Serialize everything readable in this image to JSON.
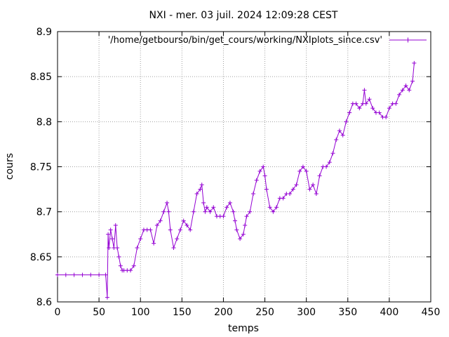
{
  "chart_data": {
    "type": "line",
    "title": "NXI - mer. 03 juil. 2024 12:09:28 CEST",
    "xlabel": "temps",
    "ylabel": "cours",
    "xlim": [
      0,
      450
    ],
    "ylim": [
      8.6,
      8.9
    ],
    "xticks": [
      "0",
      "50",
      "100",
      "150",
      "200",
      "250",
      "300",
      "350",
      "400",
      "450"
    ],
    "yticks": [
      "8.6",
      "8.65",
      "8.7",
      "8.75",
      "8.8",
      "8.85",
      "8.9"
    ],
    "grid": true,
    "legend_position": "top-right",
    "line_color": "#9400d3",
    "series": [
      {
        "name": "'/home/getbourso/bin/get_cours/working/NXIplots_since.csv'",
        "x": [
          0,
          10,
          20,
          30,
          40,
          50,
          58,
          60,
          61,
          62,
          64,
          66,
          68,
          70,
          72,
          74,
          76,
          78,
          80,
          84,
          88,
          92,
          96,
          100,
          104,
          108,
          112,
          116,
          120,
          124,
          128,
          132,
          134,
          136,
          140,
          144,
          148,
          152,
          156,
          160,
          164,
          168,
          172,
          174,
          176,
          178,
          180,
          184,
          188,
          192,
          196,
          200,
          204,
          208,
          212,
          214,
          216,
          220,
          224,
          226,
          228,
          232,
          236,
          240,
          244,
          248,
          250,
          252,
          256,
          260,
          264,
          268,
          272,
          276,
          280,
          284,
          288,
          292,
          296,
          300,
          304,
          308,
          312,
          316,
          320,
          324,
          328,
          332,
          336,
          340,
          344,
          348,
          352,
          356,
          360,
          364,
          368,
          370,
          372,
          376,
          380,
          384,
          388,
          392,
          396,
          400,
          404,
          408,
          412,
          416,
          420,
          424,
          428,
          430
        ],
        "y": [
          8.63,
          8.63,
          8.63,
          8.63,
          8.63,
          8.63,
          8.63,
          8.605,
          8.675,
          8.66,
          8.68,
          8.67,
          8.66,
          8.685,
          8.66,
          8.65,
          8.64,
          8.635,
          8.635,
          8.635,
          8.635,
          8.64,
          8.66,
          8.67,
          8.68,
          8.68,
          8.68,
          8.665,
          8.685,
          8.69,
          8.7,
          8.71,
          8.7,
          8.68,
          8.66,
          8.67,
          8.68,
          8.69,
          8.685,
          8.68,
          8.7,
          8.72,
          8.725,
          8.73,
          8.71,
          8.7,
          8.705,
          8.7,
          8.705,
          8.695,
          8.695,
          8.695,
          8.705,
          8.71,
          8.7,
          8.69,
          8.68,
          8.67,
          8.675,
          8.685,
          8.695,
          8.7,
          8.72,
          8.735,
          8.745,
          8.75,
          8.74,
          8.725,
          8.705,
          8.7,
          8.705,
          8.715,
          8.715,
          8.72,
          8.72,
          8.725,
          8.73,
          8.745,
          8.75,
          8.745,
          8.725,
          8.73,
          8.72,
          8.74,
          8.75,
          8.75,
          8.755,
          8.765,
          8.78,
          8.79,
          8.785,
          8.8,
          8.81,
          8.82,
          8.82,
          8.815,
          8.82,
          8.835,
          8.82,
          8.825,
          8.815,
          8.81,
          8.81,
          8.805,
          8.805,
          8.815,
          8.82,
          8.82,
          8.83,
          8.835,
          8.84,
          8.835,
          8.845,
          8.865
        ]
      }
    ]
  }
}
